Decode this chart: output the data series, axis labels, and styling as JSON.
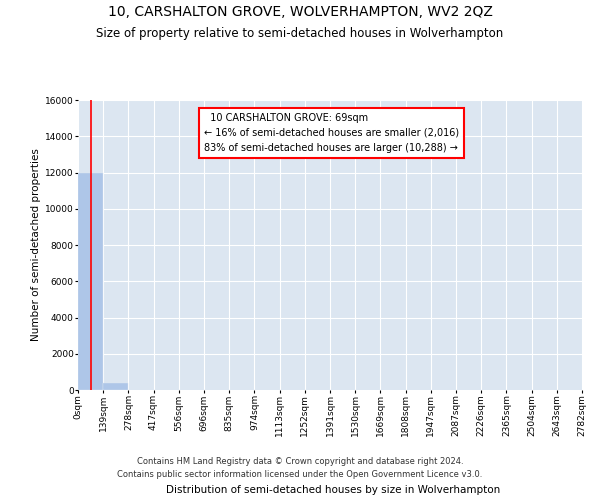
{
  "title": "10, CARSHALTON GROVE, WOLVERHAMPTON, WV2 2QZ",
  "subtitle": "Size of property relative to semi-detached houses in Wolverhampton",
  "xlabel": "Distribution of semi-detached houses by size in Wolverhampton",
  "ylabel": "Number of semi-detached properties",
  "footer_line1": "Contains HM Land Registry data © Crown copyright and database right 2024.",
  "footer_line2": "Contains public sector information licensed under the Open Government Licence v3.0.",
  "property_size": 69,
  "property_label": "10 CARSHALTON GROVE: 69sqm",
  "pct_smaller": 16,
  "n_smaller": 2016,
  "pct_larger": 83,
  "n_larger": 10288,
  "bin_edges": [
    0,
    139,
    278,
    417,
    556,
    696,
    835,
    974,
    1113,
    1252,
    1391,
    1530,
    1669,
    1808,
    1947,
    2087,
    2226,
    2365,
    2504,
    2643,
    2782
  ],
  "bin_labels": [
    "0sqm",
    "139sqm",
    "278sqm",
    "417sqm",
    "556sqm",
    "696sqm",
    "835sqm",
    "974sqm",
    "1113sqm",
    "1252sqm",
    "1391sqm",
    "1530sqm",
    "1669sqm",
    "1808sqm",
    "1947sqm",
    "2087sqm",
    "2226sqm",
    "2365sqm",
    "2504sqm",
    "2643sqm",
    "2782sqm"
  ],
  "bar_heights": [
    12000,
    400,
    8,
    3,
    2,
    1,
    1,
    0,
    0,
    0,
    0,
    0,
    0,
    0,
    0,
    0,
    0,
    0,
    0,
    0
  ],
  "bar_color": "#aec6e8",
  "vline_x": 69,
  "vline_color": "red",
  "ylim": [
    0,
    16000
  ],
  "yticks": [
    0,
    2000,
    4000,
    6000,
    8000,
    10000,
    12000,
    14000,
    16000
  ],
  "bg_color": "#dce6f1",
  "grid_color": "white",
  "annotation_box_color": "white",
  "annotation_box_edge": "red",
  "title_fontsize": 10,
  "subtitle_fontsize": 8.5,
  "axis_label_fontsize": 7.5,
  "tick_fontsize": 6.5,
  "annotation_fontsize": 7,
  "footer_fontsize": 6
}
